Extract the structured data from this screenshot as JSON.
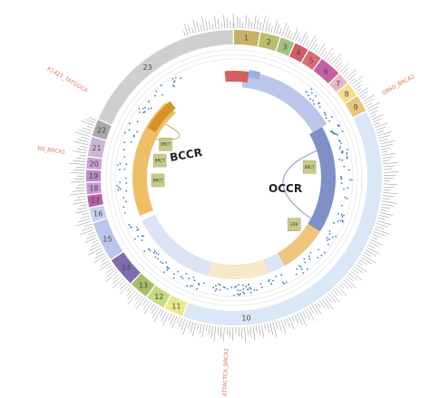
{
  "segments": [
    {
      "label": "1",
      "color": "#c8b06a",
      "a0": 0.0,
      "a1": 10.0
    },
    {
      "label": "2",
      "color": "#b9bd6c",
      "a0": 10.5,
      "a1": 18.0
    },
    {
      "label": "3",
      "color": "#a4c07d",
      "a0": 18.5,
      "a1": 24.0
    },
    {
      "label": "4",
      "color": "#d25b65",
      "a0": 24.5,
      "a1": 30.0
    },
    {
      "label": "5",
      "color": "#d86c73",
      "a0": 30.5,
      "a1": 36.0
    },
    {
      "label": "6",
      "color": "#c65fa2",
      "a0": 36.5,
      "a1": 45.0
    },
    {
      "label": "7",
      "color": "#e9b6c3",
      "a0": 45.5,
      "a1": 50.0
    },
    {
      "label": "8",
      "color": "#f1df8d",
      "a0": 50.5,
      "a1": 56.0
    },
    {
      "label": "9",
      "color": "#e8c77a",
      "a0": 56.5,
      "a1": 63.0
    },
    {
      "label": "10",
      "color": "#d9e7f7",
      "a0": 63.5,
      "a1": 200.0
    },
    {
      "label": "11",
      "color": "#e9ea8a",
      "a0": 200.5,
      "a1": 208.0
    },
    {
      "label": "12",
      "color": "#c7d882",
      "a0": 208.5,
      "a1": 216.0
    },
    {
      "label": "13",
      "color": "#a6bd6a",
      "a0": 216.5,
      "a1": 224.0
    },
    {
      "label": "14",
      "color": "#7e6cab",
      "a0": 224.5,
      "a1": 236.0
    },
    {
      "label": "15",
      "color": "#b9c5ea",
      "a0": 236.5,
      "a1": 252.0
    },
    {
      "label": "16",
      "color": "#c9d2ee",
      "a0": 252.5,
      "a1": 258.0
    },
    {
      "label": "17",
      "color": "#b85ea4",
      "a0": 258.5,
      "a1": 263.0
    },
    {
      "label": "18",
      "color": "#c79ad5",
      "a0": 263.5,
      "a1": 268.0
    },
    {
      "label": "19",
      "color": "#b78dc6",
      "a0": 268.5,
      "a1": 273.0
    },
    {
      "label": "20",
      "color": "#c9a3d2",
      "a0": 273.5,
      "a1": 278.0
    },
    {
      "label": "21",
      "color": "#cdb6d8",
      "a0": 278.5,
      "a1": 286.0
    },
    {
      "label": "22",
      "color": "#a9a9a9",
      "a0": 286.5,
      "a1": 293.0
    },
    {
      "label": "23",
      "color": "#cfcfcf",
      "a0": 293.5,
      "a1": 359.5
    }
  ],
  "inner_labels": {
    "bccr": "BCCR",
    "occr": "OCCR"
  },
  "inner_boxes": [
    {
      "label": "BRCT",
      "angle": 296
    },
    {
      "label": "BRCT",
      "angle": 283
    },
    {
      "label": "BRCT",
      "angle": 268
    },
    {
      "label": "BRCT",
      "angle": 82
    },
    {
      "label": "ERB",
      "angle": 128
    }
  ],
  "callouts": [
    {
      "text": "Q86D_BRCA2",
      "angle": 61
    },
    {
      "text": "K1427_TATGGCA",
      "angle": 300
    },
    {
      "text": "R9_BRCA1",
      "angle": 278
    },
    {
      "text": "ATTACTCA_BRCA2",
      "angle": 182
    }
  ],
  "colors": {
    "accent_orange": "#e0745a",
    "track_orange": "#e5a844",
    "track_blue": "#b9c6e7",
    "track_dark_blue": "#7f90c9",
    "dot_blue": "#3f7bbf",
    "link_blue": "#8fa8d6"
  }
}
